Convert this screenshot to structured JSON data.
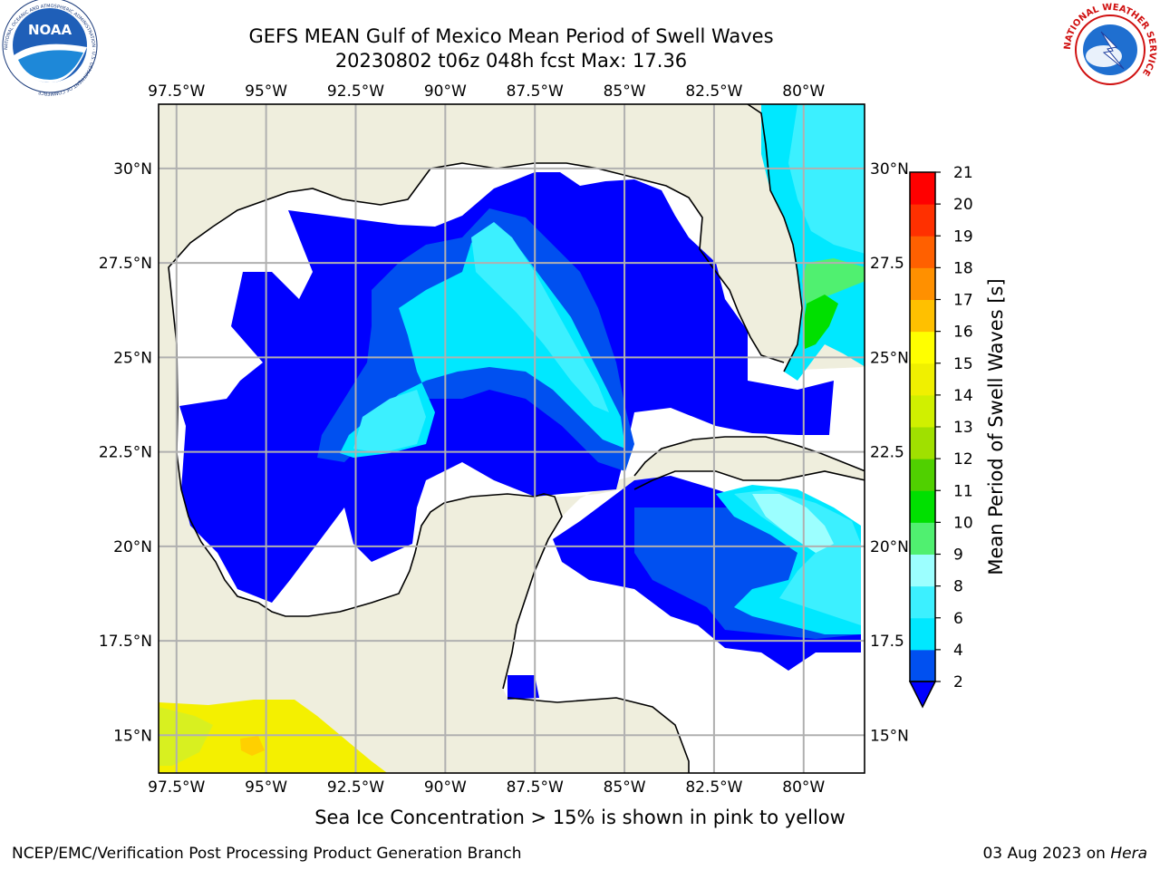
{
  "header": {
    "title_line1": "GEFS MEAN Gulf of Mexico Mean Period of Swell Waves",
    "title_line2": "20230802 t06z 048h fcst   Max: 17.36"
  },
  "logos": {
    "left": {
      "name": "NOAA",
      "text": "NOAA",
      "ring_text": "NATIONAL OCEANIC AND ATMOSPHERIC ADMINISTRATION · U.S. DEPARTMENT OF COMMERCE"
    },
    "right": {
      "name": "NWS",
      "ring_text": "NATIONAL WEATHER SERVICE"
    }
  },
  "chart_data": {
    "type": "heatmap",
    "title": "GEFS MEAN Gulf of Mexico Mean Period of Swell Waves",
    "x_ticks": [
      "97.5°W",
      "95°W",
      "92.5°W",
      "90°W",
      "87.5°W",
      "85°W",
      "82.5°W",
      "80°W"
    ],
    "x_tick_values": [
      -97.5,
      -95,
      -92.5,
      -90,
      -87.5,
      -85,
      -82.5,
      -80
    ],
    "y_ticks_left": [
      "30°N",
      "27.5°N",
      "25°N",
      "22.5°N",
      "20°N",
      "17.5°N",
      "15°N"
    ],
    "y_ticks_right": [
      "30°N",
      "27.5",
      "25°N",
      "22.5",
      "20°N",
      "17.5",
      "15°N"
    ],
    "y_tick_values": [
      30,
      27.5,
      25,
      22.5,
      20,
      17.5,
      15
    ],
    "lon_range": [
      -98,
      -78.3
    ],
    "lat_range": [
      14,
      31.7
    ],
    "grid": true,
    "colorbar": {
      "label": "Mean Period of Swell Waves [s]",
      "levels": [
        2,
        4,
        6,
        8,
        9,
        10,
        11,
        12,
        13,
        14,
        15,
        16,
        17,
        18,
        19,
        20,
        21
      ],
      "colors": [
        "#0050f0",
        "#00e8ff",
        "#3cf0ff",
        "#9cffff",
        "#50f070",
        "#00e000",
        "#50d000",
        "#a0e000",
        "#d0f000",
        "#f0f000",
        "#ffff00",
        "#ffc000",
        "#ff9000",
        "#ff6000",
        "#ff3000",
        "#ff0000"
      ],
      "under_color": "#0000ff",
      "extend": "min"
    },
    "colors": {
      "land": "#efeedd",
      "no_data": "#ffffff",
      "sea_ice_field": "#f4f000"
    }
  },
  "caption": "Sea Ice Concentration > 15% is shown in pink to yellow",
  "footer": {
    "left": "NCEP/EMC/Verification Post Processing Product Generation Branch",
    "right_date": "03 Aug 2023 on ",
    "right_host": "Hera"
  }
}
